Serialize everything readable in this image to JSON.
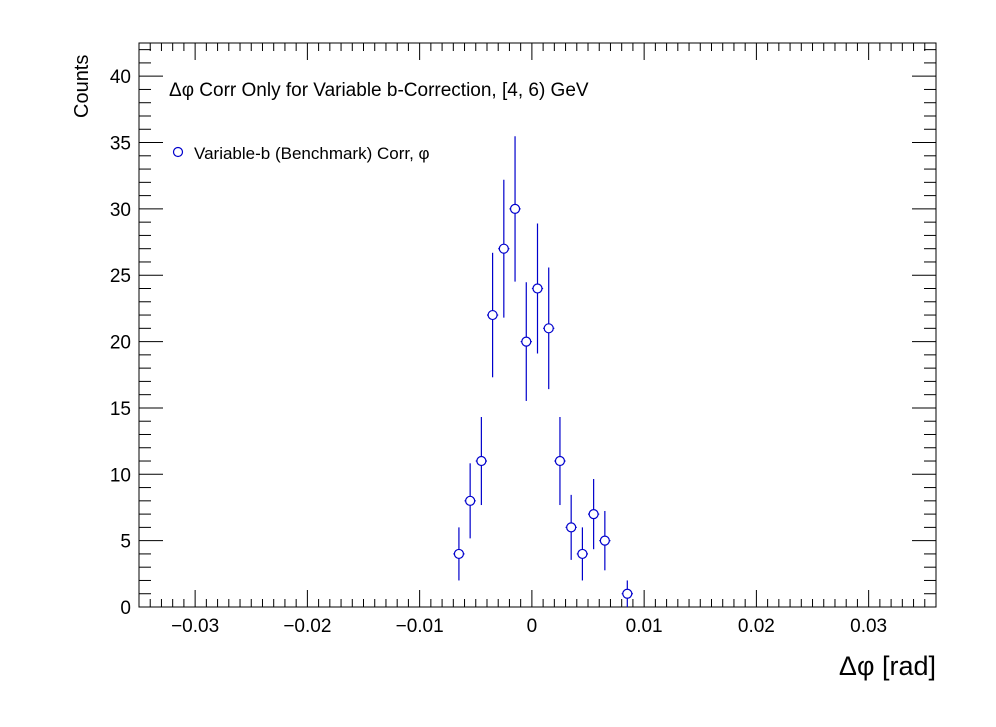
{
  "chart_data": {
    "type": "scatter",
    "title": "Δφ Corr Only for Variable b-Correction, [4, 6) GeV",
    "xlabel": "Δφ  [rad]",
    "ylabel": "Counts",
    "xlim": [
      -0.035,
      0.036
    ],
    "ylim": [
      0,
      42.5
    ],
    "xticks": [
      -0.03,
      -0.02,
      -0.01,
      0,
      0.01,
      0.02,
      0.03
    ],
    "xtick_labels": [
      "−0.03",
      "−0.02",
      "−0.01",
      "0",
      "0.01",
      "0.02",
      "0.03"
    ],
    "yticks": [
      0,
      5,
      10,
      15,
      20,
      25,
      30,
      35,
      40
    ],
    "ytick_labels": [
      "0",
      "5",
      "10",
      "15",
      "20",
      "25",
      "30",
      "35",
      "40"
    ],
    "grid": false,
    "legend_position": "top-left",
    "bin_width": 0.001,
    "series": [
      {
        "name": "Variable-b (Benchmark) Corr, φ",
        "color": "#0000cc",
        "marker": "open-circle",
        "x": [
          -0.0065,
          -0.0055,
          -0.0045,
          -0.0035,
          -0.0025,
          -0.0015,
          -0.0005,
          0.0005,
          0.0015,
          0.0025,
          0.0035,
          0.0045,
          0.0055,
          0.0065,
          0.0085
        ],
        "y": [
          4,
          8,
          11,
          22,
          27,
          30,
          20,
          24,
          21,
          11,
          6,
          4,
          7,
          5,
          1
        ]
      }
    ]
  }
}
